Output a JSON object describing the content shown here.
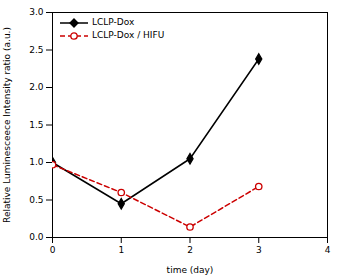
{
  "chart_data": {
    "type": "line",
    "xlabel": "time (day)",
    "ylabel": "Relative Luminesceece Intensity ratio (a.u.)",
    "x": [
      0,
      1,
      2,
      3
    ],
    "series": [
      {
        "name": "LCLP-Dox",
        "color": "#000000",
        "values": [
          1.0,
          0.45,
          1.05,
          2.38
        ],
        "marker": "diamond",
        "line_style": "solid"
      },
      {
        "name": "LCLP-Dox / HIFU",
        "color": "#cc0000",
        "values": [
          0.97,
          0.6,
          0.14,
          0.68
        ],
        "marker": "circle-open",
        "line_style": "dashed"
      }
    ],
    "xlim": [
      0,
      4
    ],
    "ylim": [
      0.0,
      3.0
    ],
    "xticks": [
      0,
      1,
      2,
      3,
      4
    ],
    "yticks": [
      {
        "value": 0.0,
        "label": "0.0"
      },
      0.5,
      {
        "value": 1.0,
        "label": "1.0"
      },
      1.5,
      {
        "value": 2.0,
        "label": "2.0"
      },
      2.5,
      {
        "value": 3.0,
        "label": "3.0"
      }
    ],
    "grid": false,
    "legend": "upper left"
  }
}
